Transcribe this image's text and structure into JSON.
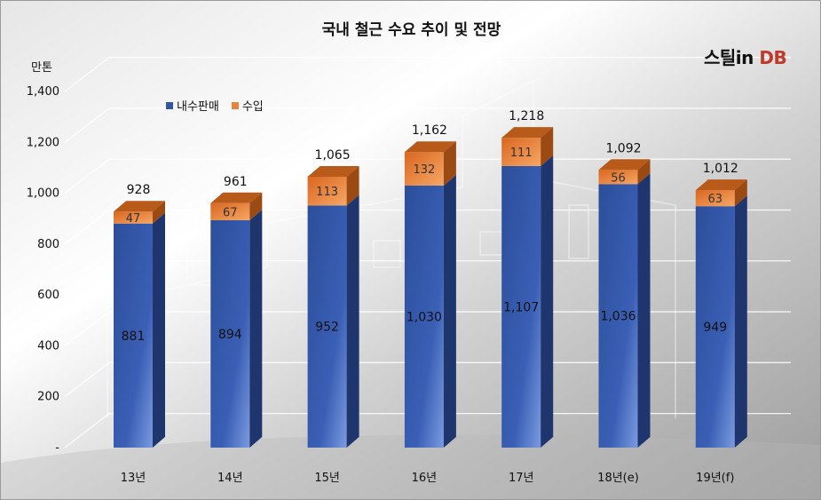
{
  "logo": {
    "part1": "스틸in",
    "part2": "DB"
  },
  "colors": {
    "domestic": "#3355a8",
    "import": "#e8833a"
  },
  "chart_data": {
    "type": "bar",
    "stacked": true,
    "title": "국내 철근 수요 추이 및 전망",
    "unit_label": "만톤",
    "categories": [
      "13년",
      "14년",
      "15년",
      "16년",
      "17년",
      "18년(e)",
      "19년(f)"
    ],
    "series": [
      {
        "name": "내수판매",
        "values": [
          881,
          894,
          952,
          1030,
          1107,
          1036,
          949
        ]
      },
      {
        "name": "수입",
        "values": [
          47,
          67,
          113,
          132,
          111,
          56,
          63
        ]
      }
    ],
    "totals": [
      928,
      961,
      1065,
      1162,
      1218,
      1092,
      1012
    ],
    "ylim": [
      0,
      1400
    ],
    "yticks": [
      0,
      200,
      400,
      600,
      800,
      1000,
      1200,
      1400
    ],
    "ytick_labels": [
      "-",
      "200",
      "400",
      "600",
      "800",
      "1,000",
      "1,200",
      "1,400"
    ],
    "value_labels": {
      "domestic": [
        "881",
        "894",
        "952",
        "1,030",
        "1,107",
        "1,036",
        "949"
      ],
      "import": [
        "47",
        "67",
        "113",
        "132",
        "111",
        "56",
        "63"
      ],
      "totals": [
        "928",
        "961",
        "1,065",
        "1,162",
        "1,218",
        "1,092",
        "1,012"
      ]
    },
    "legend_position": "top-left",
    "grid": true
  }
}
